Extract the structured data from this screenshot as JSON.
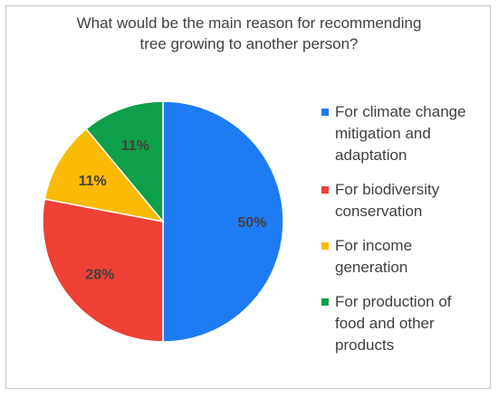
{
  "chart_data": {
    "type": "pie",
    "title_lines": [
      "What would be the main reason for recommending",
      "tree growing to another person?"
    ],
    "slices": [
      {
        "label": "For climate change mitigation and adaptation",
        "value": 50,
        "display": "50%",
        "color": "#1f7bf4"
      },
      {
        "label": "For biodiversity conservation",
        "value": 28,
        "display": "28%",
        "color": "#ee4035"
      },
      {
        "label": "For income generation",
        "value": 11,
        "display": "11%",
        "color": "#fbbb05"
      },
      {
        "label": "For production of food and other products",
        "value": 11,
        "display": "11%",
        "color": "#0d9f4a"
      }
    ],
    "legend_position": "right",
    "legend_lines": [
      [
        "For climate change",
        "mitigation and",
        "adaptation"
      ],
      [
        "For biodiversity",
        "conservation"
      ],
      [
        "For income",
        "generation"
      ],
      [
        "For production of",
        "food and other",
        "products"
      ]
    ]
  }
}
